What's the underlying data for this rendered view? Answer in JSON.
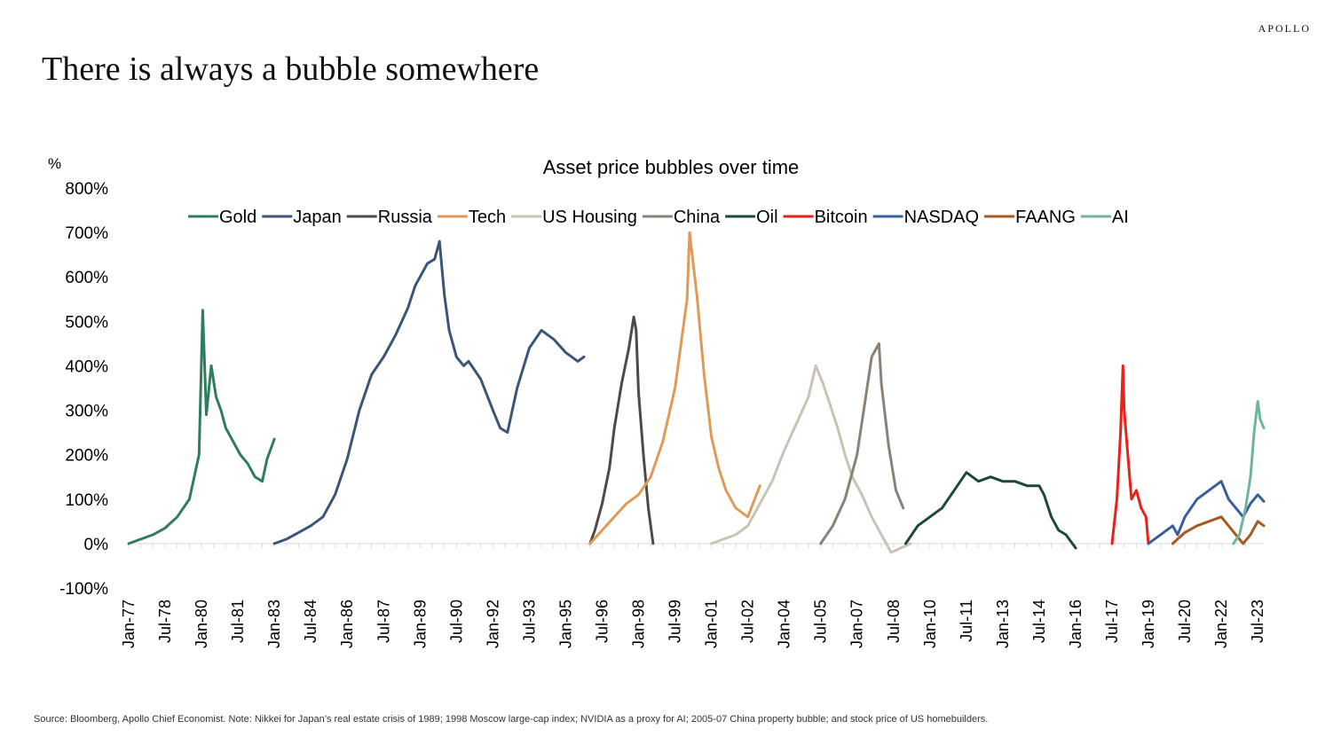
{
  "brand": "APOLLO",
  "headline": "There is always a bubble somewhere",
  "source_note": "Source: Bloomberg, Apollo Chief Economist. Note: Nikkei for Japan’s real estate crisis of 1989; 1998 Moscow large-cap index; NVIDIA as a proxy for AI; 2005-07 China property bubble; and stock price of US homebuilders.",
  "chart_data": {
    "type": "line",
    "title": "Asset price bubbles over time",
    "ylabel": "%",
    "xlabel": "",
    "ylim": [
      -100,
      800
    ],
    "y_ticks": [
      -100,
      0,
      100,
      200,
      300,
      400,
      500,
      600,
      700,
      800
    ],
    "y_tick_labels": [
      "-100%",
      "0%",
      "100%",
      "200%",
      "300%",
      "400%",
      "500%",
      "600%",
      "700%",
      "800%"
    ],
    "x_tick_labels": [
      "Jan-77",
      "Jul-78",
      "Jan-80",
      "Jul-81",
      "Jan-83",
      "Jul-84",
      "Jan-86",
      "Jul-87",
      "Jan-89",
      "Jul-90",
      "Jan-92",
      "Jul-93",
      "Jan-95",
      "Jul-96",
      "Jan-98",
      "Jul-99",
      "Jan-01",
      "Jul-02",
      "Jan-04",
      "Jul-05",
      "Jan-07",
      "Jul-08",
      "Jan-10",
      "Jul-11",
      "Jan-13",
      "Jul-14",
      "Jan-16",
      "Jul-17",
      "Jan-19",
      "Jul-20",
      "Jan-22",
      "Jul-23"
    ],
    "x_tick_values": [
      1977.0,
      1978.5,
      1980.0,
      1981.5,
      1983.0,
      1984.5,
      1986.0,
      1987.5,
      1989.0,
      1990.5,
      1992.0,
      1993.5,
      1995.0,
      1996.5,
      1998.0,
      1999.5,
      2001.0,
      2002.5,
      2004.0,
      2005.5,
      2007.0,
      2008.5,
      2010.0,
      2011.5,
      2013.0,
      2014.5,
      2016.0,
      2017.5,
      2019.0,
      2020.5,
      2022.0,
      2023.5
    ],
    "xlim": [
      1977.0,
      2023.75
    ],
    "legend_position": "top",
    "grid": false,
    "series": [
      {
        "name": "Gold",
        "color": "#2e7d5b",
        "x": [
          1977.0,
          1977.5,
          1978.0,
          1978.5,
          1979.0,
          1979.5,
          1979.9,
          1980.05,
          1980.2,
          1980.4,
          1980.6,
          1980.8,
          1981.0,
          1981.3,
          1981.6,
          1981.9,
          1982.2,
          1982.5,
          1982.7,
          1982.9,
          1983.0
        ],
        "y": [
          0,
          10,
          20,
          35,
          60,
          100,
          200,
          525,
          290,
          400,
          330,
          300,
          260,
          230,
          200,
          180,
          150,
          140,
          190,
          220,
          235
        ]
      },
      {
        "name": "Japan",
        "color": "#3b5578",
        "x": [
          1983.0,
          1983.5,
          1984.0,
          1984.5,
          1985.0,
          1985.5,
          1986.0,
          1986.5,
          1987.0,
          1987.5,
          1988.0,
          1988.5,
          1988.8,
          1989.0,
          1989.3,
          1989.6,
          1989.8,
          1990.0,
          1990.2,
          1990.5,
          1990.8,
          1991.0,
          1991.5,
          1992.0,
          1992.3,
          1992.6,
          1993.0,
          1993.5,
          1994.0,
          1994.5,
          1995.0,
          1995.5,
          1995.75
        ],
        "y": [
          0,
          10,
          25,
          40,
          60,
          110,
          190,
          300,
          380,
          420,
          470,
          530,
          580,
          600,
          630,
          640,
          680,
          560,
          480,
          420,
          400,
          410,
          370,
          300,
          260,
          250,
          350,
          440,
          480,
          460,
          430,
          410,
          420
        ]
      },
      {
        "name": "Russia",
        "color": "#4f4a45",
        "x": [
          1996.0,
          1996.2,
          1996.5,
          1996.8,
          1997.0,
          1997.3,
          1997.6,
          1997.8,
          1997.9,
          1998.0,
          1998.2,
          1998.4,
          1998.6
        ],
        "y": [
          0,
          30,
          90,
          170,
          260,
          360,
          440,
          510,
          480,
          340,
          200,
          80,
          0
        ]
      },
      {
        "name": "Tech",
        "color": "#e09a57",
        "x": [
          1996.0,
          1996.5,
          1997.0,
          1997.5,
          1998.0,
          1998.5,
          1999.0,
          1999.5,
          2000.0,
          2000.1,
          2000.4,
          2000.7,
          2001.0,
          2001.3,
          2001.6,
          2002.0,
          2002.5,
          2003.0
        ],
        "y": [
          0,
          30,
          60,
          90,
          110,
          150,
          230,
          350,
          550,
          700,
          560,
          380,
          240,
          170,
          120,
          80,
          60,
          130
        ]
      },
      {
        "name": "US Housing",
        "color": "#cbc2b6",
        "x": [
          2001.0,
          2001.5,
          2002.0,
          2002.5,
          2003.0,
          2003.5,
          2004.0,
          2004.5,
          2005.0,
          2005.3,
          2005.6,
          2005.9,
          2006.2,
          2006.5,
          2006.8,
          2007.2,
          2007.6,
          2008.0,
          2008.4,
          2008.8,
          2009.2
        ],
        "y": [
          0,
          10,
          20,
          40,
          90,
          140,
          210,
          270,
          330,
          400,
          360,
          310,
          260,
          200,
          150,
          110,
          60,
          20,
          -20,
          -10,
          0
        ]
      },
      {
        "name": "China",
        "color": "#8c8177",
        "x": [
          2005.5,
          2006.0,
          2006.5,
          2007.0,
          2007.3,
          2007.6,
          2007.9,
          2008.0,
          2008.3,
          2008.6,
          2008.9
        ],
        "y": [
          0,
          40,
          100,
          200,
          310,
          420,
          450,
          360,
          220,
          120,
          80
        ]
      },
      {
        "name": "Oil",
        "color": "#1e4a35",
        "x": [
          2009.0,
          2009.5,
          2010.0,
          2010.5,
          2011.0,
          2011.5,
          2012.0,
          2012.5,
          2013.0,
          2013.5,
          2014.0,
          2014.5,
          2014.7,
          2015.0,
          2015.3,
          2015.6,
          2016.0
        ],
        "y": [
          0,
          40,
          60,
          80,
          120,
          160,
          140,
          150,
          140,
          140,
          130,
          130,
          110,
          60,
          30,
          20,
          -10
        ]
      },
      {
        "name": "Bitcoin",
        "color": "#e8221a",
        "x": [
          2017.5,
          2017.7,
          2017.85,
          2017.95,
          2018.0,
          2018.15,
          2018.3,
          2018.5,
          2018.7,
          2018.9,
          2019.0
        ],
        "y": [
          0,
          100,
          250,
          400,
          300,
          200,
          100,
          120,
          80,
          60,
          0
        ]
      },
      {
        "name": "NASDAQ",
        "color": "#3c5d9c",
        "x": [
          2019.0,
          2019.5,
          2020.0,
          2020.2,
          2020.5,
          2021.0,
          2021.5,
          2022.0,
          2022.3,
          2022.6,
          2022.9,
          2023.2,
          2023.5,
          2023.75
        ],
        "y": [
          0,
          20,
          40,
          20,
          60,
          100,
          120,
          140,
          100,
          80,
          60,
          90,
          110,
          95
        ]
      },
      {
        "name": "FAANG",
        "color": "#a45a20",
        "x": [
          2020.0,
          2020.5,
          2021.0,
          2021.5,
          2022.0,
          2022.3,
          2022.6,
          2022.9,
          2023.2,
          2023.5,
          2023.75
        ],
        "y": [
          0,
          25,
          40,
          50,
          60,
          40,
          20,
          0,
          20,
          50,
          40
        ]
      },
      {
        "name": "AI",
        "color": "#6fb59a",
        "x": [
          2022.5,
          2022.75,
          2023.0,
          2023.2,
          2023.35,
          2023.5,
          2023.6,
          2023.75
        ],
        "y": [
          0,
          20,
          80,
          150,
          250,
          320,
          280,
          260
        ]
      }
    ]
  }
}
